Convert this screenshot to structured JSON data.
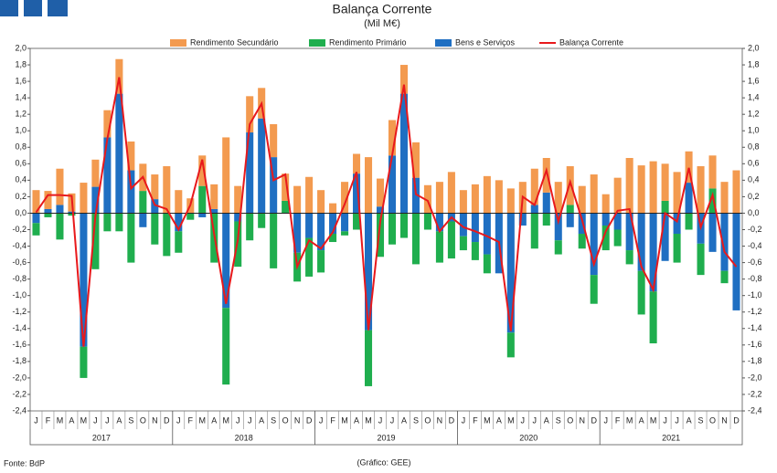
{
  "chart_data": {
    "type": "bar",
    "title": "Balança Corrente",
    "subtitle": "(Mil M€)",
    "source": "Fonte: BdP",
    "credit": "(Gráfico: GEE)",
    "categories": [
      "J",
      "F",
      "M",
      "A",
      "M",
      "J",
      "J",
      "A",
      "S",
      "O",
      "N",
      "D",
      "J",
      "F",
      "M",
      "A",
      "M",
      "J",
      "J",
      "A",
      "S",
      "O",
      "N",
      "D",
      "J",
      "F",
      "M",
      "A",
      "M",
      "J",
      "J",
      "A",
      "S",
      "O",
      "N",
      "D",
      "J",
      "F",
      "M",
      "A",
      "M",
      "J",
      "J",
      "A",
      "S",
      "O",
      "N",
      "D",
      "J",
      "F",
      "M",
      "A",
      "M",
      "J",
      "J",
      "A",
      "S",
      "O",
      "N",
      "D"
    ],
    "years": [
      "2017",
      "2018",
      "2019",
      "2020",
      "2021"
    ],
    "series": [
      {
        "name": "Rendimento Secundário",
        "type": "bar",
        "color": "#f39a4f",
        "values": [
          0.28,
          0.22,
          0.44,
          0.22,
          0.37,
          0.33,
          0.33,
          0.42,
          0.35,
          0.33,
          0.3,
          0.57,
          0.28,
          0.18,
          0.37,
          0.3,
          0.92,
          0.33,
          0.44,
          0.37,
          0.4,
          0.33,
          0.33,
          0.44,
          0.28,
          0.12,
          0.38,
          0.24,
          0.68,
          0.34,
          0.43,
          0.35,
          0.43,
          0.34,
          0.38,
          0.5,
          0.28,
          0.35,
          0.45,
          0.4,
          0.3,
          0.38,
          0.44,
          0.42,
          0.38,
          0.47,
          0.33,
          0.47,
          0.23,
          0.43,
          0.67,
          0.58,
          0.63,
          0.45,
          0.5,
          0.38,
          0.57,
          0.4,
          0.38,
          0.52
        ]
      },
      {
        "name": "Rendimento Primário",
        "type": "bar",
        "color": "#1fae4e",
        "values": [
          -0.15,
          -0.05,
          -0.32,
          -0.03,
          -0.38,
          -0.68,
          -0.22,
          -0.22,
          -0.6,
          0.27,
          -0.38,
          -0.52,
          -0.26,
          -0.08,
          0.33,
          -0.6,
          -0.93,
          -0.55,
          -0.33,
          -0.18,
          -0.67,
          0.15,
          -0.35,
          -0.47,
          -0.27,
          -0.1,
          -0.05,
          -0.2,
          -0.68,
          -0.53,
          -0.38,
          -0.3,
          -0.62,
          -0.2,
          -0.38,
          -0.45,
          -0.17,
          -0.22,
          -0.23,
          0.0,
          -0.3,
          0.0,
          -0.43,
          -0.15,
          -0.17,
          0.1,
          -0.18,
          -0.35,
          -0.3,
          -0.2,
          -0.17,
          -0.53,
          -0.63,
          0.15,
          -0.35,
          -0.2,
          -0.38,
          0.3,
          -0.15,
          0.0
        ]
      },
      {
        "name": "Bens e Serviços",
        "type": "bar",
        "color": "#1f6fc2",
        "values": [
          -0.12,
          0.05,
          0.1,
          0.02,
          -1.62,
          0.32,
          0.92,
          1.45,
          0.52,
          -0.17,
          0.17,
          0.0,
          -0.22,
          0.0,
          -0.05,
          0.05,
          -1.15,
          -0.1,
          0.98,
          1.15,
          0.68,
          0.0,
          -0.48,
          -0.3,
          -0.45,
          -0.25,
          -0.22,
          0.48,
          -1.42,
          0.08,
          0.7,
          1.45,
          0.43,
          0.0,
          -0.22,
          -0.1,
          -0.28,
          -0.35,
          -0.5,
          -0.73,
          -1.45,
          -0.15,
          0.1,
          0.25,
          -0.33,
          -0.17,
          -0.25,
          -0.75,
          -0.15,
          -0.2,
          -0.45,
          -0.7,
          -0.95,
          -0.58,
          -0.25,
          0.37,
          -0.37,
          -0.47,
          -0.7,
          -1.18
        ]
      },
      {
        "name": "Balança Corrente",
        "type": "line",
        "color": "#e8191c",
        "values": [
          0.01,
          0.22,
          0.22,
          0.21,
          -1.62,
          -0.03,
          0.9,
          1.65,
          0.3,
          0.44,
          0.1,
          0.05,
          -0.2,
          0.1,
          0.65,
          -0.25,
          -1.1,
          -0.32,
          1.08,
          1.33,
          0.4,
          0.47,
          -0.65,
          -0.33,
          -0.43,
          -0.23,
          0.11,
          0.5,
          -1.42,
          -0.1,
          0.7,
          1.56,
          0.23,
          0.15,
          -0.22,
          -0.05,
          -0.17,
          -0.22,
          -0.28,
          -0.35,
          -1.43,
          0.2,
          0.1,
          0.52,
          -0.1,
          0.38,
          -0.08,
          -0.62,
          -0.22,
          0.03,
          0.05,
          -0.65,
          -0.93,
          0.0,
          -0.1,
          0.55,
          -0.17,
          0.22,
          -0.47,
          -0.65
        ]
      }
    ],
    "ylim": [
      -2.4,
      2.0
    ],
    "yticks": [
      {
        "value": -2.4,
        "label": "-2,4"
      },
      {
        "value": -2.2,
        "label": "-2,2"
      },
      {
        "value": -2.0,
        "label": "-2,0"
      },
      {
        "value": -1.8,
        "label": "-1,8"
      },
      {
        "value": -1.6,
        "label": "-1,6"
      },
      {
        "value": -1.4,
        "label": "-1,4"
      },
      {
        "value": -1.2,
        "label": "-1,2"
      },
      {
        "value": -1.0,
        "label": "-1,0"
      },
      {
        "value": -0.8,
        "label": "-0,8"
      },
      {
        "value": -0.6,
        "label": "-0,6"
      },
      {
        "value": -0.4,
        "label": "-0,4"
      },
      {
        "value": -0.2,
        "label": "-0,2"
      },
      {
        "value": 0,
        "label": "0,0"
      },
      {
        "value": 0.2,
        "label": "0,2"
      },
      {
        "value": 0.4,
        "label": "0,4"
      },
      {
        "value": 0.6,
        "label": "0,6"
      },
      {
        "value": 0.8,
        "label": "0,8"
      },
      {
        "value": 1.0,
        "label": "1,0"
      },
      {
        "value": 1.2,
        "label": "1,2"
      },
      {
        "value": 1.4,
        "label": "1,4"
      },
      {
        "value": 1.6,
        "label": "1,6"
      },
      {
        "value": 1.8,
        "label": "1,8"
      },
      {
        "value": 2.0,
        "label": "2,0"
      }
    ]
  }
}
